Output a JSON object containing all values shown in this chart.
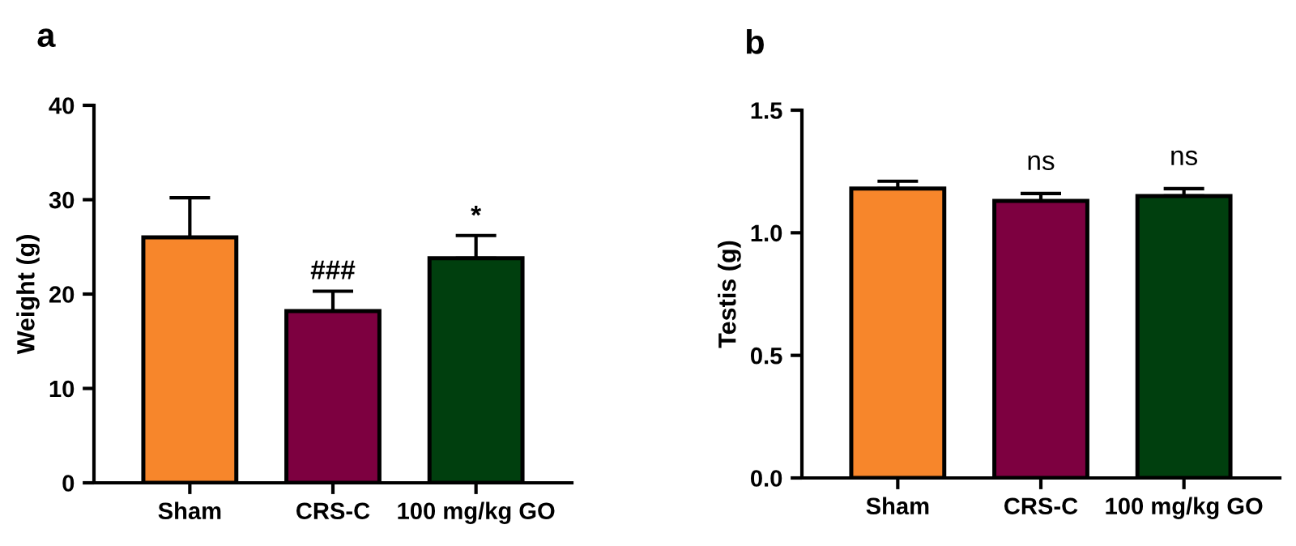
{
  "chart_data": [
    {
      "type": "bar",
      "title": "a",
      "ylabel": "Weight (g)",
      "categories": [
        "Sham",
        "CRS-C",
        "100 mg/kg GO"
      ],
      "values": [
        26.0,
        18.2,
        23.8
      ],
      "colors": [
        "#f7862b",
        "#7d0040",
        "#003f0e"
      ],
      "errors": [
        [
          26.0,
          30.2
        ],
        [
          18.2,
          20.3
        ],
        [
          23.8,
          26.2
        ]
      ],
      "ylim": [
        0,
        40
      ],
      "yticks": [
        0,
        10,
        20,
        30,
        40
      ],
      "grid": false,
      "annotations": [
        {
          "text": "###",
          "x": "CRS-C",
          "y": 21.0
        },
        {
          "text": "*",
          "x": "100 mg/kg GO",
          "y": 26.8
        }
      ]
    },
    {
      "type": "bar",
      "title": "b",
      "ylabel": "Testis (g)",
      "categories": [
        "Sham",
        "CRS-C",
        "100 mg/kg GO"
      ],
      "values": [
        1.18,
        1.13,
        1.15
      ],
      "colors": [
        "#f7862b",
        "#7d0040",
        "#003f0e"
      ],
      "errors": [
        [
          1.18,
          1.21
        ],
        [
          1.13,
          1.16
        ],
        [
          1.15,
          1.18
        ]
      ],
      "ylim": [
        0,
        1.5
      ],
      "yticks": [
        {
          "value": 0,
          "label": "0.0"
        },
        {
          "value": 0.5,
          "label": "0.5"
        },
        {
          "value": 1.0,
          "label": "1.0"
        },
        {
          "value": 1.5,
          "label": "1.5"
        }
      ],
      "grid": false,
      "annotations": [
        "ns",
        "ns"
      ]
    }
  ]
}
